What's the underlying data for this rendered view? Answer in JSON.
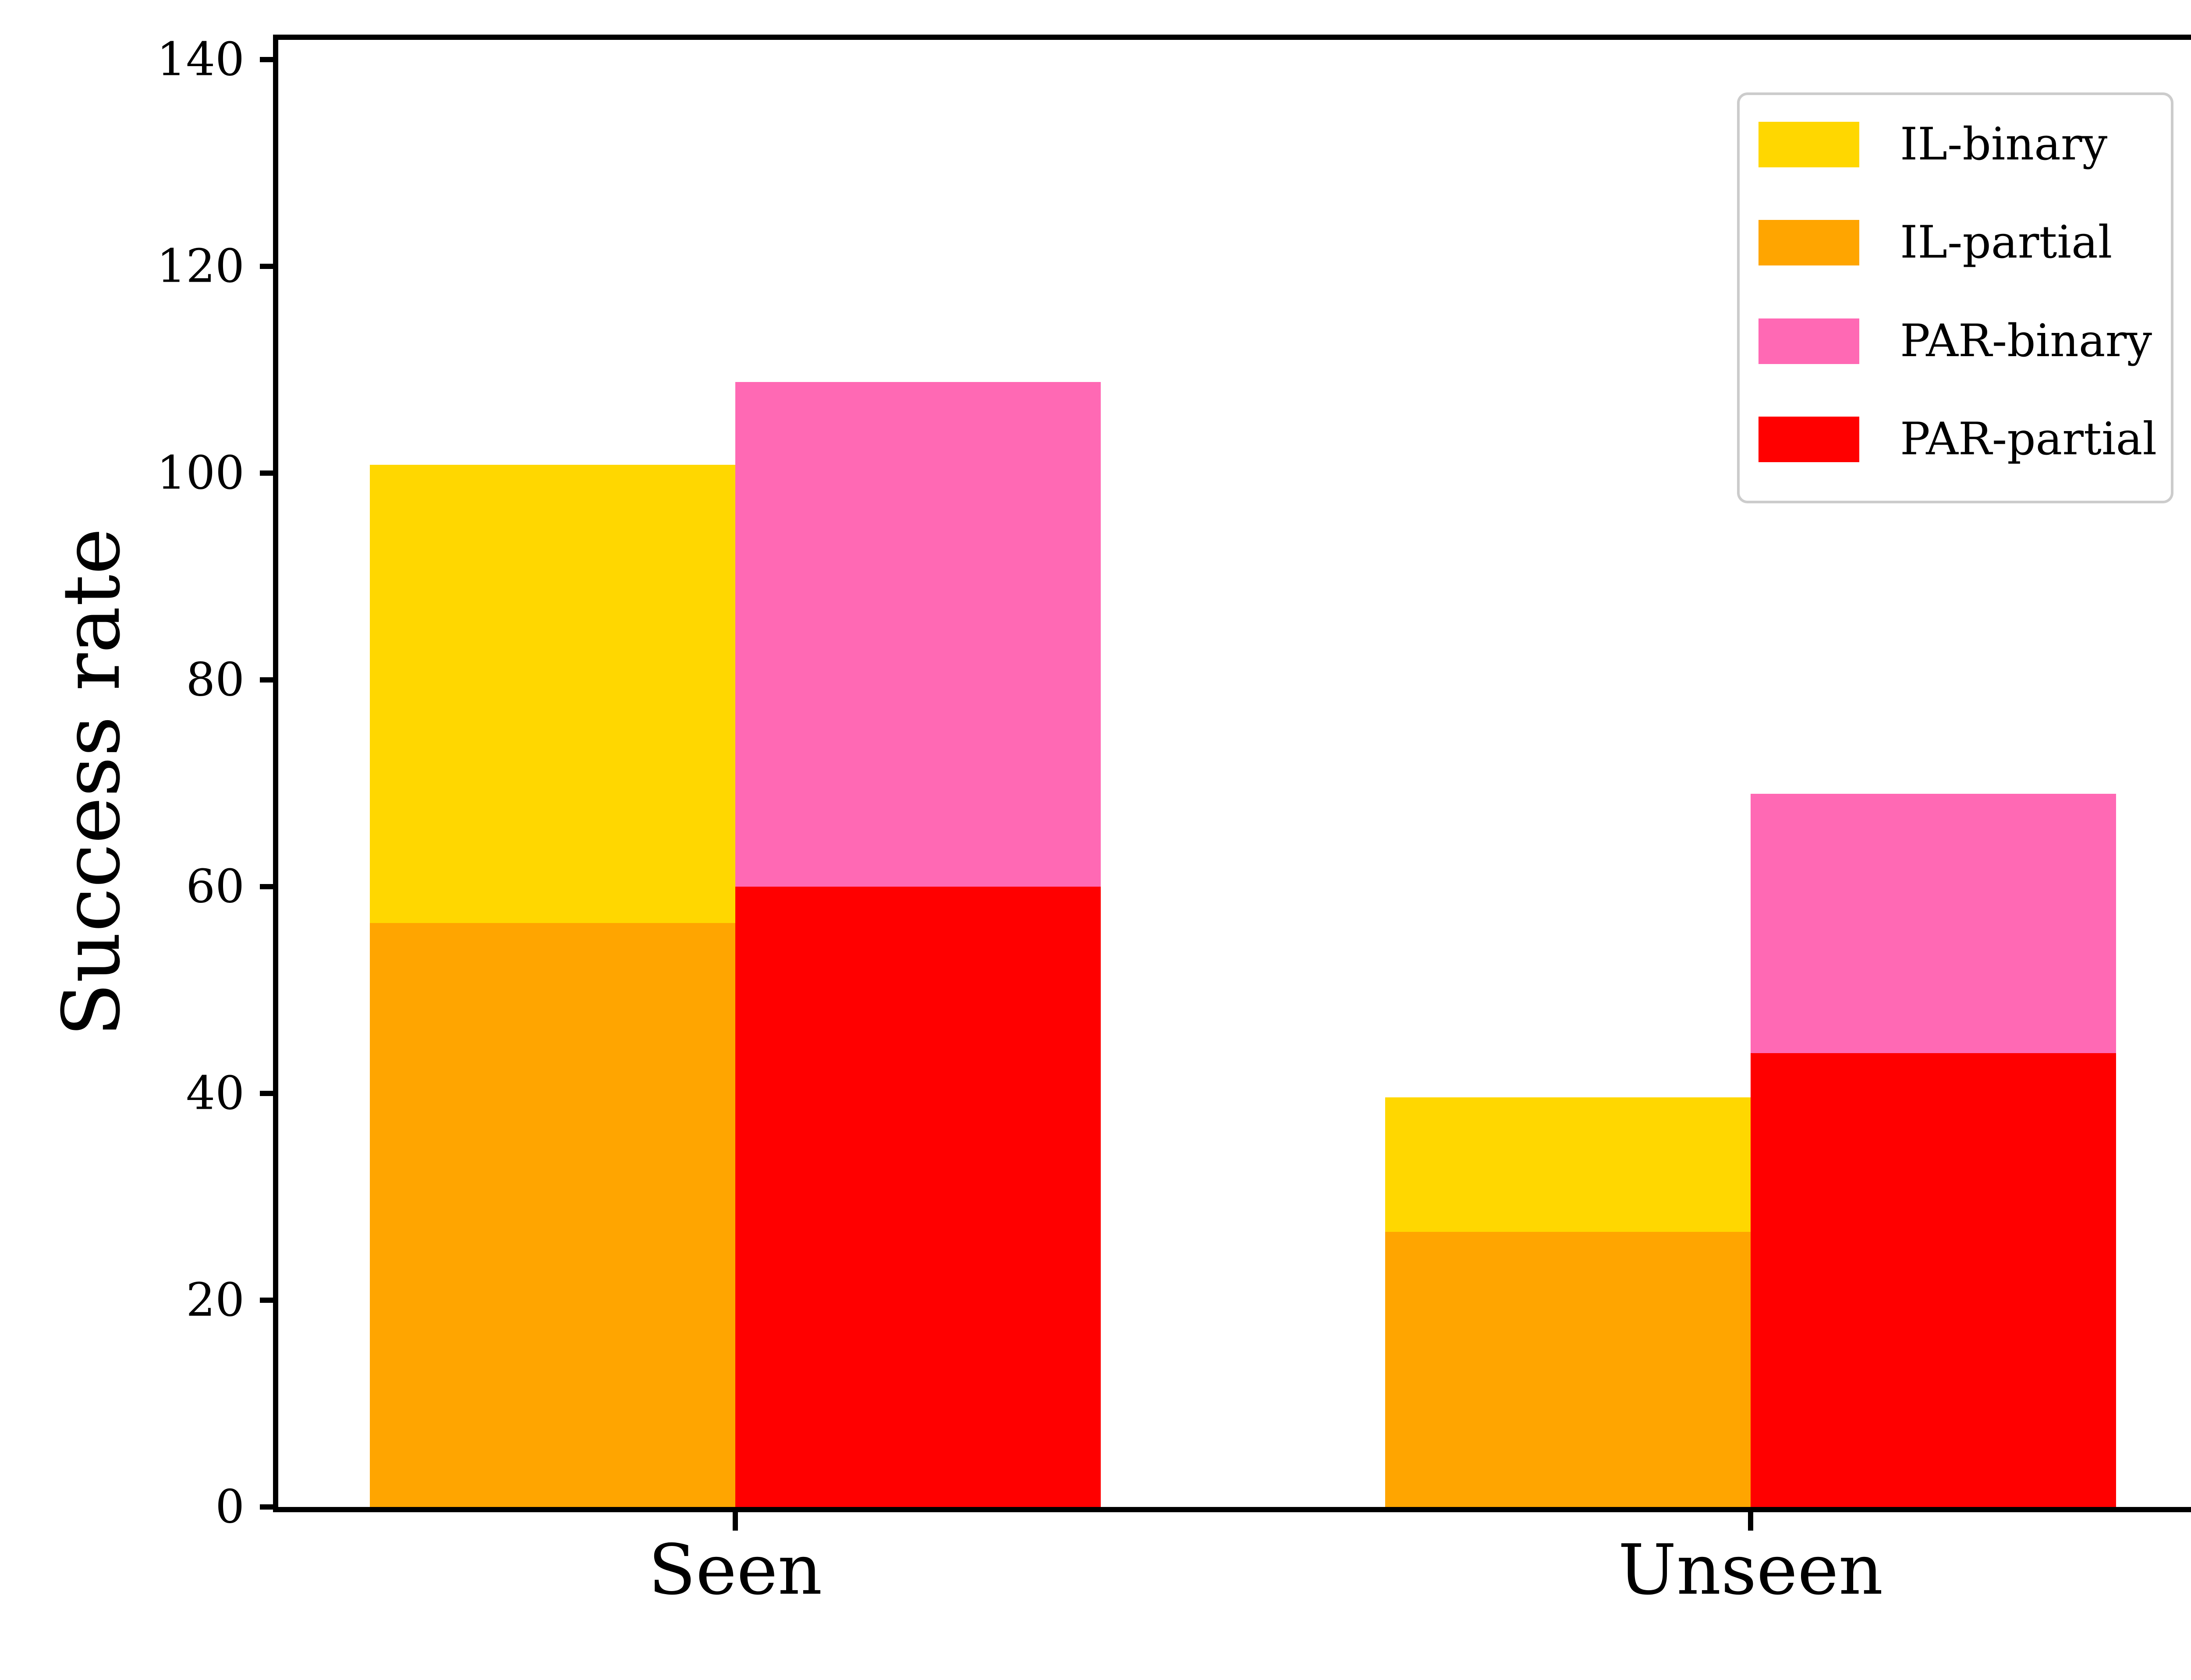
{
  "figure": {
    "ylabel": "Success rate"
  },
  "axes": {
    "y_tick_labels": [
      "0",
      "20",
      "40",
      "60",
      "80",
      "100",
      "120",
      "140"
    ],
    "y_tick_values": [
      0,
      20,
      40,
      60,
      80,
      100,
      120,
      140
    ],
    "x_tick_labels": [
      "Seen",
      "Unseen"
    ]
  },
  "legend": {
    "entries": [
      {
        "label": "IL-binary",
        "color": "#FFD700"
      },
      {
        "label": "IL-partial",
        "color": "#FFA500"
      },
      {
        "label": "PAR-binary",
        "color": "#FF69B4"
      },
      {
        "label": "PAR-partial",
        "color": "#FF0000"
      }
    ],
    "position": "upper right"
  },
  "chart_data": {
    "type": "bar",
    "title": "",
    "xlabel": "",
    "ylabel": "Success rate",
    "categories": [
      "Seen",
      "Unseen"
    ],
    "series": [
      {
        "name": "IL-binary",
        "group": "IL",
        "variant": "binary",
        "color": "#FFD700",
        "values": [
          100.8,
          39.6
        ]
      },
      {
        "name": "IL-partial",
        "group": "IL",
        "variant": "partial",
        "color": "#FFA500",
        "values": [
          56.5,
          26.6
        ]
      },
      {
        "name": "PAR-binary",
        "group": "PAR",
        "variant": "binary",
        "color": "#FF69B4",
        "values": [
          108.8,
          69.0
        ]
      },
      {
        "name": "PAR-partial",
        "group": "PAR",
        "variant": "partial",
        "color": "#FF0000",
        "values": [
          60.0,
          43.9
        ]
      }
    ],
    "ylim": [
      0,
      140
    ],
    "y_tick_step": 20,
    "grid": false,
    "legend_position": "upper right",
    "bar_style": "overlaid: binary bar drawn behind, partial bar drawn in front from 0; IL pair left of category center, PAR pair right of category center"
  }
}
